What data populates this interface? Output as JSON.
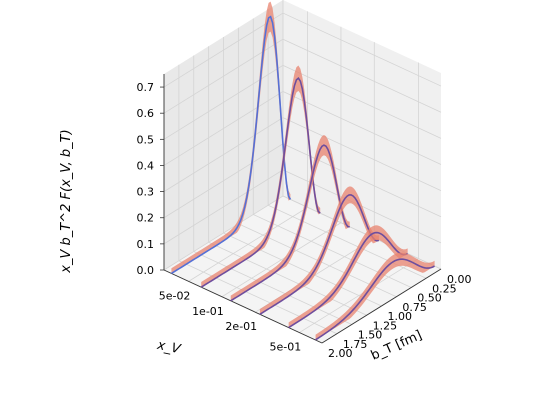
{
  "chart_data": {
    "type": "3d-line",
    "title": "",
    "xlabel": "x_V",
    "ylabel": "b_T [fm]",
    "zlabel": "x_V b_T^2 F(x_V, b_T)",
    "x_tick_labels": [
      "5e-02",
      "1e-01",
      "2e-01",
      "5e-01"
    ],
    "y_tick_labels": [
      "0.00",
      "0.25",
      "0.50",
      "0.75",
      "1.00",
      "1.25",
      "1.50",
      "1.75",
      "2.00"
    ],
    "z_tick_labels": [
      "0.0",
      "0.1",
      "0.2",
      "0.3",
      "0.4",
      "0.5",
      "0.6",
      "0.7"
    ],
    "zlim": [
      0,
      0.75
    ],
    "ylim": [
      0,
      2
    ],
    "grid": true,
    "colors": {
      "band": "#e8836f",
      "central": "#5470d6",
      "dark": "#6e4e9e"
    },
    "curves": [
      {
        "x_v": 0.035,
        "peak_b": 0.35,
        "peak": 0.75
      },
      {
        "x_v": 0.065,
        "peak_b": 0.38,
        "peak": 0.57
      },
      {
        "x_v": 0.12,
        "peak_b": 0.45,
        "peak": 0.375
      },
      {
        "x_v": 0.22,
        "peak_b": 0.52,
        "peak": 0.245
      },
      {
        "x_v": 0.4,
        "peak_b": 0.6,
        "peak": 0.16
      },
      {
        "x_v": 0.7,
        "peak_b": 0.7,
        "peak": 0.115
      }
    ]
  }
}
